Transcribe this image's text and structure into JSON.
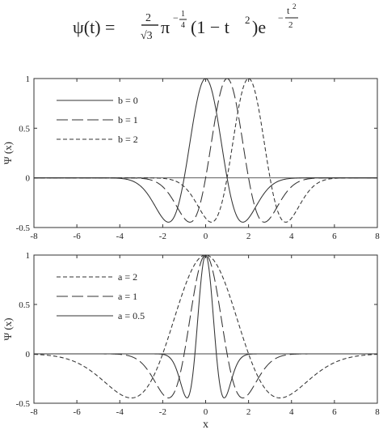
{
  "formula": {
    "lhs": "ψ(t) = ",
    "num": "2",
    "den": "√3",
    "pi": "π",
    "exp_sign": "−",
    "exp_num": "1",
    "exp_den": "4",
    "mid": "(1 − t",
    "sq": "2",
    "close": ")e",
    "e_sign": "−",
    "e_num": "t",
    "e_num_sq": "2",
    "e_den": "2"
  },
  "chart_data": [
    {
      "type": "line",
      "function": "mexican-hat",
      "xlim": [
        -8,
        8
      ],
      "ylim": [
        -0.5,
        1
      ],
      "xticks": [
        "-8",
        "-6",
        "-4",
        "-2",
        "0",
        "2",
        "4",
        "6",
        "8"
      ],
      "yticks": [
        "1",
        "0.5",
        "0",
        "-0.5"
      ],
      "ylabel": "Ψ (x)",
      "xlabel": "",
      "legend_position": "top-left",
      "series": [
        {
          "name": "b = 0",
          "b": 0,
          "a": 1,
          "style": "solid"
        },
        {
          "name": "b = 1",
          "b": 1,
          "a": 1,
          "style": "long-dash"
        },
        {
          "name": "b = 2",
          "b": 2,
          "a": 1,
          "style": "short-dash"
        }
      ]
    },
    {
      "type": "line",
      "function": "mexican-hat",
      "xlim": [
        -8,
        8
      ],
      "ylim": [
        -0.5,
        1
      ],
      "xticks": [
        "-8",
        "-6",
        "-4",
        "-2",
        "0",
        "2",
        "4",
        "6",
        "8"
      ],
      "yticks": [
        "1",
        "0.5",
        "0",
        "-0.5"
      ],
      "ylabel": "Ψ (x)",
      "xlabel": "x",
      "legend_position": "top-left",
      "series": [
        {
          "name": "a = 2",
          "b": 0,
          "a": 2,
          "style": "short-dash"
        },
        {
          "name": "a = 1",
          "b": 0,
          "a": 1,
          "style": "long-dash"
        },
        {
          "name": "a = 0.5",
          "b": 0,
          "a": 0.5,
          "style": "solid"
        }
      ]
    }
  ]
}
